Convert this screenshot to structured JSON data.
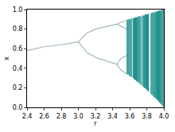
{
  "chart_data": {
    "type": "line",
    "x_label": "r",
    "y_label": "x",
    "xlim": [
      2.4,
      4.0
    ],
    "ylim": [
      0,
      1
    ],
    "xticks": [
      2.4,
      2.6,
      2.8,
      {
        "value": 3,
        "label": "3.0"
      },
      3.2,
      3.4,
      3.6,
      3.8,
      {
        "value": 4,
        "label": "4.0"
      }
    ],
    "yticks": [
      {
        "value": 0,
        "label": "0.0"
      },
      0.2,
      0.4,
      0.6,
      0.8,
      {
        "value": 1,
        "label": "1.0"
      }
    ],
    "grid": false,
    "series": [
      {
        "color": "#9fb9b6",
        "x": [
          2.4,
          2.6,
          2.8,
          3.0
        ],
        "values": [
          0.58,
          0.62,
          0.64,
          0.67
        ]
      },
      {
        "color": "#9fb9b6",
        "x": [
          3.0,
          3.1,
          3.2,
          3.3,
          3.4,
          3.45,
          3.5,
          3.54,
          3.57
        ],
        "values": [
          0.67,
          0.76,
          0.8,
          0.82,
          0.84,
          0.85,
          0.87,
          0.88,
          0.89
        ]
      },
      {
        "color": "#9fb9b6",
        "x": [
          3.0,
          3.1,
          3.2,
          3.3,
          3.4,
          3.45,
          3.5,
          3.54,
          3.57
        ],
        "values": [
          0.67,
          0.56,
          0.51,
          0.48,
          0.45,
          0.44,
          0.38,
          0.36,
          0.34
        ]
      },
      {
        "color": "#9fb9b6",
        "x": [
          3.45,
          3.5,
          3.54,
          3.57
        ],
        "values": [
          0.85,
          0.83,
          0.81,
          0.8
        ]
      },
      {
        "color": "#9fb9b6",
        "x": [
          3.45,
          3.5,
          3.54,
          3.57
        ],
        "values": [
          0.44,
          0.5,
          0.52,
          0.53
        ]
      },
      {
        "color": "#21918c",
        "x": [
          3.57,
          3.57,
          null,
          3.58,
          3.58,
          null,
          3.59,
          3.59,
          null,
          3.6,
          3.6,
          null,
          3.61,
          3.61,
          null,
          3.62,
          3.62,
          null,
          3.64,
          3.64,
          null,
          3.65,
          3.65,
          null,
          3.66,
          3.66,
          null,
          3.67,
          3.67,
          null,
          3.68,
          3.68,
          null,
          3.69,
          3.69,
          null,
          3.7,
          3.7,
          null,
          3.71,
          3.71,
          null,
          3.72,
          3.72,
          null,
          3.73,
          3.73,
          null,
          3.75,
          3.75,
          null,
          3.76,
          3.76,
          null,
          3.77,
          3.77,
          null,
          3.78,
          3.78,
          null,
          3.79,
          3.79,
          null,
          3.8,
          3.8,
          null,
          3.81,
          3.81,
          null,
          3.82,
          3.82,
          null,
          3.85,
          3.85,
          null,
          3.86,
          3.86,
          null,
          3.87,
          3.87,
          null,
          3.88,
          3.88,
          null,
          3.89,
          3.89,
          null,
          3.9,
          3.9,
          null,
          3.91,
          3.91,
          null,
          3.92,
          3.92,
          null,
          3.93,
          3.93,
          null,
          3.94,
          3.94,
          null,
          3.95,
          3.95,
          null,
          3.96,
          3.96,
          null,
          3.97,
          3.97,
          null,
          3.98,
          3.98,
          null,
          3.99,
          3.99,
          null,
          4.0,
          4.0
        ],
        "values": [
          0.34,
          0.89,
          null,
          0.34,
          0.9,
          null,
          0.33,
          0.9,
          null,
          0.32,
          0.9,
          null,
          0.32,
          0.9,
          null,
          0.31,
          0.91,
          null,
          0.3,
          0.91,
          null,
          0.29,
          0.91,
          null,
          0.28,
          0.92,
          null,
          0.28,
          0.92,
          null,
          0.27,
          0.92,
          null,
          0.26,
          0.92,
          null,
          0.26,
          0.93,
          null,
          0.25,
          0.93,
          null,
          0.24,
          0.93,
          null,
          0.23,
          0.93,
          null,
          0.22,
          0.94,
          null,
          0.21,
          0.94,
          null,
          0.2,
          0.94,
          null,
          0.2,
          0.95,
          null,
          0.19,
          0.95,
          null,
          0.18,
          0.95,
          null,
          0.17,
          0.95,
          null,
          0.16,
          0.96,
          null,
          0.14,
          0.96,
          null,
          0.13,
          0.97,
          null,
          0.12,
          0.97,
          null,
          0.11,
          0.97,
          null,
          0.1,
          0.97,
          null,
          0.1,
          0.98,
          null,
          0.09,
          0.98,
          null,
          0.08,
          0.98,
          null,
          0.07,
          0.98,
          null,
          0.06,
          0.99,
          null,
          0.05,
          0.99,
          null,
          0.04,
          0.99,
          null,
          0.03,
          0.99,
          null,
          0.02,
          1.0,
          null,
          0.01,
          1.0,
          null,
          0,
          1.0
        ]
      }
    ]
  }
}
